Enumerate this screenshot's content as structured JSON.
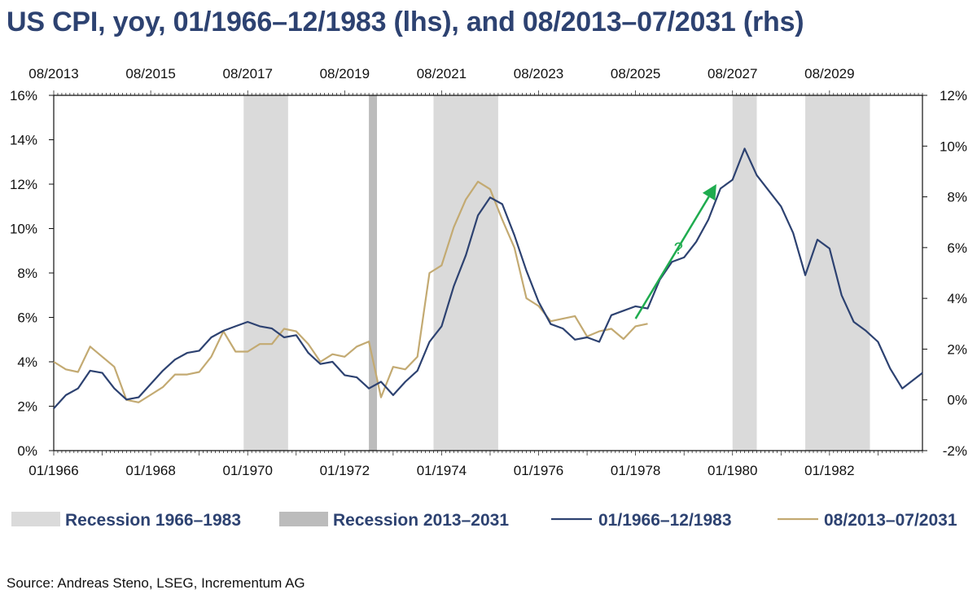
{
  "title": "US CPI, yoy, 01/1966–12/1983 (lhs), and 08/2013–07/2031 (rhs)",
  "source": "Source: Andreas Steno, LSEG, Incrementum AG",
  "colors": {
    "title": "#2d4271",
    "series_1966": "#2d4271",
    "series_2013": "#c3aa72",
    "recession_1966": "#dadada",
    "recession_2013": "#bcbcbc",
    "arrow": "#1fac4f"
  },
  "chart_data": {
    "type": "line",
    "x_bottom": {
      "label": "",
      "range": [
        "01/1966",
        "12/1983"
      ],
      "ticks": [
        "01/1966",
        "01/1968",
        "01/1970",
        "01/1972",
        "01/1974",
        "01/1976",
        "01/1978",
        "01/1980",
        "01/1982"
      ]
    },
    "x_top": {
      "label": "",
      "range": [
        "08/2013",
        "07/2031"
      ],
      "ticks": [
        "08/2013",
        "08/2015",
        "08/2017",
        "08/2019",
        "08/2021",
        "08/2023",
        "08/2025",
        "08/2027",
        "08/2029"
      ]
    },
    "y_left": {
      "label": "",
      "unit": "%",
      "ylim": [
        0,
        16
      ],
      "ticks": [
        "0%",
        "2%",
        "4%",
        "6%",
        "8%",
        "10%",
        "12%",
        "14%",
        "16%"
      ]
    },
    "y_right": {
      "label": "",
      "unit": "%",
      "ylim": [
        -2,
        12
      ],
      "ticks": [
        "-2%",
        "0%",
        "2%",
        "4%",
        "6%",
        "8%",
        "10%",
        "12%"
      ]
    },
    "grid": false,
    "legend_position": "bottom",
    "series": [
      {
        "name": "01/1966–12/1983",
        "axis": "left",
        "x": [
          "01/1966",
          "04/1966",
          "07/1966",
          "10/1966",
          "01/1967",
          "04/1967",
          "07/1967",
          "10/1967",
          "01/1968",
          "04/1968",
          "07/1968",
          "10/1968",
          "01/1969",
          "04/1969",
          "07/1969",
          "10/1969",
          "01/1970",
          "04/1970",
          "07/1970",
          "10/1970",
          "01/1971",
          "04/1971",
          "07/1971",
          "10/1971",
          "01/1972",
          "04/1972",
          "07/1972",
          "10/1972",
          "01/1973",
          "04/1973",
          "07/1973",
          "10/1973",
          "01/1974",
          "04/1974",
          "07/1974",
          "10/1974",
          "01/1975",
          "04/1975",
          "07/1975",
          "10/1975",
          "01/1976",
          "04/1976",
          "07/1976",
          "10/1976",
          "01/1977",
          "04/1977",
          "07/1977",
          "10/1977",
          "01/1978",
          "04/1978",
          "07/1978",
          "10/1978",
          "01/1979",
          "04/1979",
          "07/1979",
          "10/1979",
          "01/1980",
          "04/1980",
          "07/1980",
          "10/1980",
          "01/1981",
          "04/1981",
          "07/1981",
          "10/1981",
          "01/1982",
          "04/1982",
          "07/1982",
          "10/1982",
          "01/1983",
          "04/1983",
          "07/1983",
          "12/1983"
        ],
        "values": [
          1.9,
          2.5,
          2.8,
          3.6,
          3.5,
          2.8,
          2.3,
          2.4,
          3.0,
          3.6,
          4.1,
          4.4,
          4.5,
          5.1,
          5.4,
          5.6,
          5.8,
          5.6,
          5.5,
          5.1,
          5.2,
          4.4,
          3.9,
          4.0,
          3.4,
          3.3,
          2.8,
          3.1,
          2.5,
          3.1,
          3.6,
          4.9,
          5.6,
          7.4,
          8.8,
          10.6,
          11.4,
          11.1,
          9.7,
          8.1,
          6.7,
          5.7,
          5.5,
          5.0,
          5.1,
          4.9,
          6.1,
          6.3,
          6.5,
          6.4,
          7.7,
          8.5,
          8.7,
          9.4,
          10.4,
          11.8,
          12.2,
          13.6,
          12.4,
          11.7,
          11.0,
          9.8,
          7.9,
          9.5,
          9.1,
          7.0,
          5.8,
          5.4,
          4.9,
          3.7,
          2.8,
          3.5
        ]
      },
      {
        "name": "08/2013–07/2031",
        "axis": "right",
        "x": [
          "08/2013",
          "11/2013",
          "02/2014",
          "05/2014",
          "08/2014",
          "11/2014",
          "02/2015",
          "05/2015",
          "08/2015",
          "11/2015",
          "02/2016",
          "05/2016",
          "08/2016",
          "11/2016",
          "02/2017",
          "05/2017",
          "08/2017",
          "11/2017",
          "02/2018",
          "05/2018",
          "08/2018",
          "11/2018",
          "02/2019",
          "05/2019",
          "08/2019",
          "11/2019",
          "02/2020",
          "05/2020",
          "08/2020",
          "11/2020",
          "02/2021",
          "05/2021",
          "08/2021",
          "11/2021",
          "02/2022",
          "05/2022",
          "08/2022",
          "11/2022",
          "02/2023",
          "05/2023",
          "08/2023",
          "11/2023",
          "02/2024",
          "05/2024",
          "08/2024",
          "11/2024",
          "02/2025",
          "05/2025",
          "08/2025",
          "11/2025"
        ],
        "values": [
          1.5,
          1.2,
          1.1,
          2.1,
          1.7,
          1.3,
          0.0,
          -0.1,
          0.2,
          0.5,
          1.0,
          1.0,
          1.1,
          1.7,
          2.7,
          1.9,
          1.9,
          2.2,
          2.2,
          2.8,
          2.7,
          2.2,
          1.5,
          1.8,
          1.7,
          2.1,
          2.3,
          0.1,
          1.3,
          1.2,
          1.7,
          5.0,
          5.3,
          6.8,
          7.9,
          8.6,
          8.3,
          7.1,
          6.0,
          4.0,
          3.7,
          3.1,
          3.2,
          3.3,
          2.5,
          2.7,
          2.8,
          2.4,
          2.9,
          3.0
        ]
      }
    ],
    "recessions": [
      {
        "name": "Recession 1966–1983",
        "periods": [
          [
            "12/1969",
            "11/1970"
          ],
          [
            "11/1973",
            "03/1975"
          ],
          [
            "01/1980",
            "07/1980"
          ],
          [
            "07/1981",
            "11/1982"
          ]
        ]
      },
      {
        "name": "Recession 2013–2031",
        "periods": [
          [
            "02/2020",
            "04/2020"
          ]
        ]
      }
    ],
    "annotations": [
      {
        "text": "?",
        "type": "arrow",
        "from": {
          "x": "08/2025",
          "y_right": 3.2
        },
        "to": {
          "x": "04/2027",
          "y_right": 8.5
        }
      }
    ]
  },
  "legend": [
    {
      "label": "Recession 1966–1983",
      "kind": "band",
      "color": "#dadada"
    },
    {
      "label": "Recession 2013–2031",
      "kind": "band",
      "color": "#bcbcbc"
    },
    {
      "label": "01/1966–12/1983",
      "kind": "line",
      "color": "#2d4271"
    },
    {
      "label": "08/2013–07/2031",
      "kind": "line",
      "color": "#c3aa72"
    }
  ]
}
